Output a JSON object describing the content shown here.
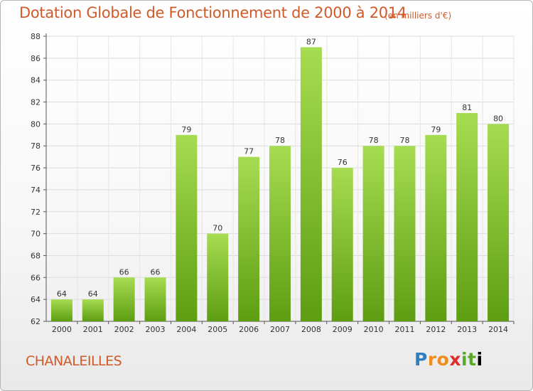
{
  "title": "Dotation Globale de Fonctionnement de 2000 à 2014",
  "unit_note": "(en milliers d'€)",
  "commune": "CHANALEILLES",
  "logo": "Proxiti",
  "chart_data": {
    "type": "bar",
    "categories": [
      "2000",
      "2001",
      "2002",
      "2003",
      "2004",
      "2005",
      "2006",
      "2007",
      "2008",
      "2009",
      "2010",
      "2011",
      "2012",
      "2013",
      "2014"
    ],
    "values": [
      64,
      64,
      66,
      66,
      79,
      70,
      77,
      78,
      87,
      76,
      78,
      78,
      79,
      81,
      80
    ],
    "ylim": [
      62,
      88
    ],
    "yticks": [
      62,
      64,
      66,
      68,
      70,
      72,
      74,
      76,
      78,
      80,
      82,
      84,
      86,
      88
    ],
    "grid": true,
    "bar_color": "#7fbf2a"
  }
}
